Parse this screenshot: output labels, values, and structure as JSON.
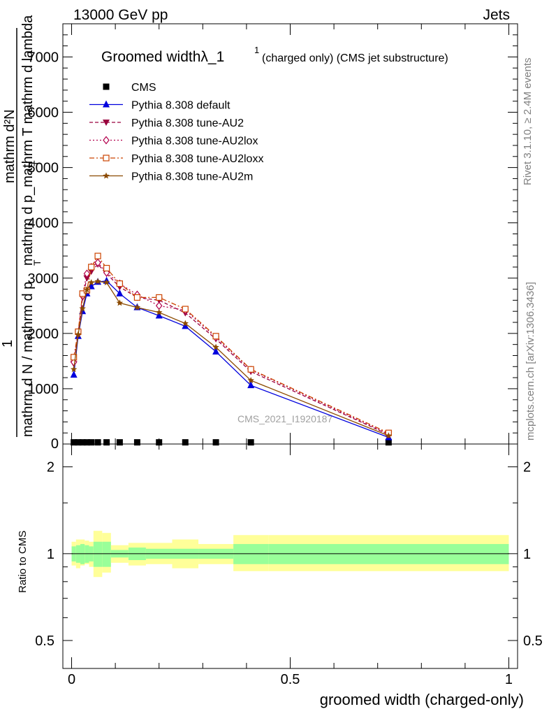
{
  "header": {
    "left": "13000 GeV pp",
    "right": "Jets"
  },
  "side_labels": {
    "rivet": "Rivet 3.1.10, ≥ 2.4M events",
    "mcplots": "mcplots.cern.ch [arXiv:1306.3436]"
  },
  "watermark": "CMS_2021_I1920187",
  "main_title": {
    "text": "Groomed widthλ_1",
    "sup": "1",
    "suffix": "(charged only) (CMS jet substructure)"
  },
  "y_axis_label": {
    "line1": "mathrm d²N",
    "line2": "mathrm d p_mathrm T mathrm d lambda",
    "sub": "T",
    "one": "1",
    "line3": "mathrm d N / mathrm d p",
    "sub2": "T"
  },
  "ratio_ylabel": "Ratio to CMS",
  "x_axis_label": "groomed width (charged-only)",
  "colors": {
    "cms": "#000000",
    "default": "#0000dd",
    "au2": "#99003d",
    "au2lox": "#b3004d",
    "au2loxx": "#cc4400",
    "au2m": "#8b4a00",
    "band_inner": "#99ff99",
    "band_outer": "#ffff99"
  },
  "chart_data": [
    {
      "type": "line",
      "panel": "main",
      "title": "Groomed widthλ_1",
      "xlim": [
        -0.02,
        1.02
      ],
      "ylim": [
        0,
        7600
      ],
      "x_ticks": [
        0,
        0.5,
        1
      ],
      "y_ticks": [
        1000,
        2000,
        3000,
        4000,
        5000,
        6000,
        7000
      ],
      "y_tick_labels": [
        "1000",
        "2000",
        "3000",
        "4000",
        "5000",
        "6000",
        "7000"
      ],
      "legend_position": "top-left",
      "x": [
        0.005,
        0.015,
        0.025,
        0.035,
        0.045,
        0.06,
        0.08,
        0.11,
        0.15,
        0.2,
        0.26,
        0.33,
        0.41,
        0.725
      ],
      "series": [
        {
          "name": "CMS",
          "marker": "square",
          "values": [
            30,
            30,
            30,
            30,
            30,
            30,
            30,
            30,
            30,
            30,
            30,
            30,
            30,
            30
          ]
        },
        {
          "name": "Pythia 8.308 default",
          "marker": "triangle-up",
          "values": [
            1250,
            1950,
            2400,
            2720,
            2850,
            2930,
            2950,
            2720,
            2470,
            2320,
            2130,
            1670,
            1060,
            120
          ]
        },
        {
          "name": "Pythia 8.308 tune-AU2",
          "marker": "triangle-down",
          "values": [
            1450,
            2000,
            2650,
            3000,
            3120,
            3250,
            3080,
            2840,
            2650,
            2600,
            2370,
            1900,
            1310,
            170
          ]
        },
        {
          "name": "Pythia 8.308 tune-AU2lox",
          "marker": "diamond-open",
          "values": [
            1480,
            2000,
            2680,
            3080,
            3200,
            3280,
            3100,
            2900,
            2700,
            2500,
            2420,
            1930,
            1340,
            180
          ]
        },
        {
          "name": "Pythia 8.308 tune-AU2loxx",
          "marker": "square-open",
          "values": [
            1570,
            2030,
            2720,
            2780,
            3200,
            3400,
            3180,
            2900,
            2650,
            2650,
            2440,
            1950,
            1350,
            200
          ]
        },
        {
          "name": "Pythia 8.308 tune-AU2m",
          "marker": "star",
          "values": [
            1350,
            1980,
            2450,
            2790,
            2920,
            2940,
            2920,
            2550,
            2470,
            2380,
            2180,
            1750,
            1150,
            150
          ]
        }
      ]
    },
    {
      "type": "area",
      "panel": "ratio",
      "ylabel": "Ratio to CMS",
      "xlabel": "groomed width (charged-only)",
      "xlim": [
        -0.02,
        1.02
      ],
      "ylim": [
        0.4,
        2.4
      ],
      "log_y": true,
      "y_ticks": [
        0.5,
        1,
        2
      ],
      "y_tick_labels": [
        "0.5",
        "1",
        "2"
      ],
      "x_ticks": [
        0,
        0.5,
        1
      ],
      "x_tick_labels": [
        "0",
        "0.5",
        "1"
      ],
      "bin_edges": [
        0,
        0.01,
        0.02,
        0.03,
        0.04,
        0.05,
        0.07,
        0.09,
        0.13,
        0.17,
        0.23,
        0.29,
        0.37,
        0.45,
        1.0
      ],
      "inner_band": [
        [
          0.94,
          1.06
        ],
        [
          0.93,
          1.07
        ],
        [
          0.92,
          1.08
        ],
        [
          0.93,
          1.07
        ],
        [
          0.94,
          1.06
        ],
        [
          0.9,
          1.1
        ],
        [
          0.9,
          1.1
        ],
        [
          0.97,
          1.03
        ],
        [
          0.95,
          1.05
        ],
        [
          0.96,
          1.04
        ],
        [
          0.96,
          1.04
        ],
        [
          0.96,
          1.04
        ],
        [
          0.92,
          1.08
        ],
        [
          0.92,
          1.08
        ]
      ],
      "outer_band": [
        [
          0.91,
          1.1
        ],
        [
          0.89,
          1.12
        ],
        [
          0.91,
          1.12
        ],
        [
          0.92,
          1.11
        ],
        [
          0.9,
          1.1
        ],
        [
          0.83,
          1.2
        ],
        [
          0.86,
          1.18
        ],
        [
          0.93,
          1.07
        ],
        [
          0.91,
          1.09
        ],
        [
          0.92,
          1.09
        ],
        [
          0.89,
          1.12
        ],
        [
          0.92,
          1.08
        ],
        [
          0.87,
          1.16
        ],
        [
          0.87,
          1.16
        ]
      ]
    }
  ]
}
